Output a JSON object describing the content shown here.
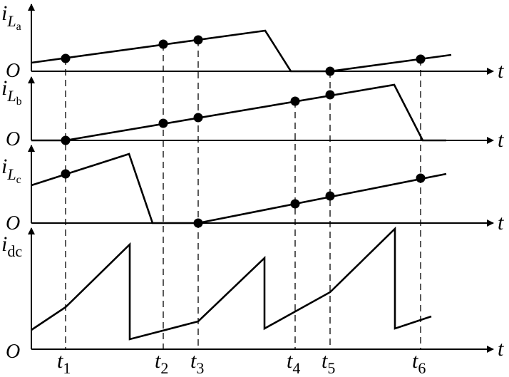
{
  "origin_label": "O",
  "time_axis_label": "t",
  "channels": [
    {
      "var": "i",
      "sub": "L",
      "subsub": "a"
    },
    {
      "var": "i",
      "sub": "L",
      "subsub": "b"
    },
    {
      "var": "i",
      "sub": "L",
      "subsub": "c"
    },
    {
      "var": "i",
      "sub": "dc",
      "subsub": ""
    }
  ],
  "time_markers": [
    {
      "var": "t",
      "sub": "1"
    },
    {
      "var": "t",
      "sub": "2"
    },
    {
      "var": "t",
      "sub": "3"
    },
    {
      "var": "t",
      "sub": "4"
    },
    {
      "var": "t",
      "sub": "5"
    },
    {
      "var": "t",
      "sub": "6"
    }
  ]
}
